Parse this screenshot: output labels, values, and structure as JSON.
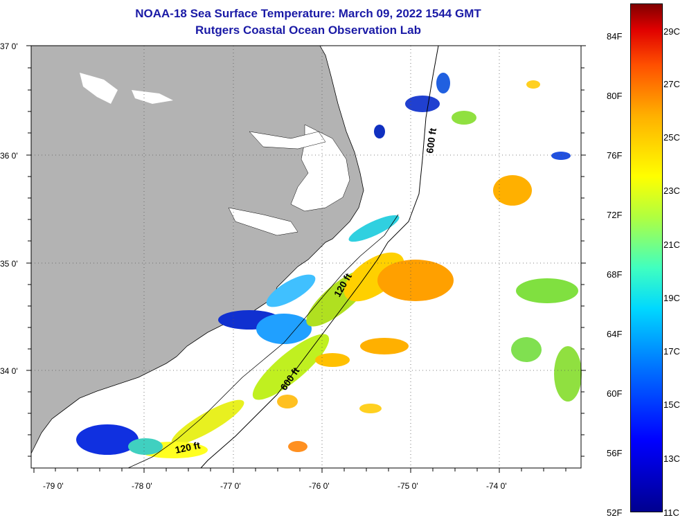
{
  "title": {
    "line1": "NOAA-18 Sea Surface Temperature:  March 09, 2022 1544 GMT",
    "line2": "Rutgers Coastal Ocean Observation Lab"
  },
  "map": {
    "lat_labels": [
      "37 0'",
      "36 0'",
      "35 0'",
      "34 0'"
    ],
    "lon_labels": [
      "-79 0'",
      "-78 0'",
      "-77 0'",
      "-76 0'",
      "-75 0'",
      "-74 0'"
    ],
    "contour_labels": [
      "600 ft",
      "120 ft",
      "600 ft",
      "120 ft"
    ],
    "land_color": "#b3b3b3"
  },
  "colorbar": {
    "fahrenheit_labels": [
      "84F",
      "80F",
      "76F",
      "72F",
      "68F",
      "64F",
      "60F",
      "56F",
      "52F"
    ],
    "celsius_labels": [
      "29C",
      "27C",
      "25C",
      "23C",
      "21C",
      "19C",
      "17C",
      "15C",
      "13C",
      "11C"
    ]
  }
}
